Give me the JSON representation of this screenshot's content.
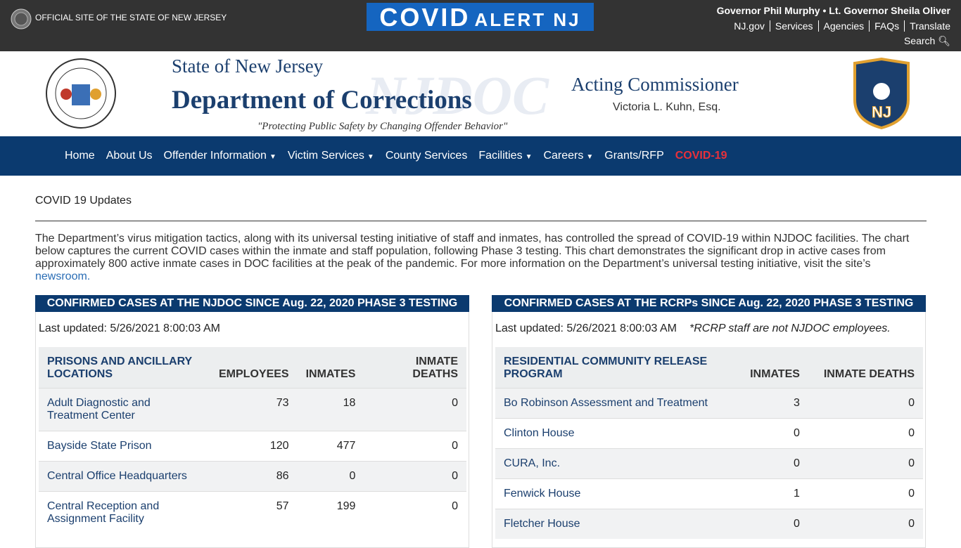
{
  "top_bar": {
    "official_site": "OFFICIAL SITE OF THE STATE OF NEW JERSEY",
    "covid_banner": {
      "covid": "COVID",
      "alert": "ALERT NJ"
    },
    "governor": "Governor Phil Murphy • Lt. Governor Sheila Oliver",
    "links": [
      "NJ.gov",
      "Services",
      "Agencies",
      "FAQs",
      "Translate"
    ],
    "search": "Search"
  },
  "header": {
    "state": "State of New Jersey",
    "department": "Department of Corrections",
    "watermark": "NJDOC",
    "tagline": "\"Protecting Public Safety by Changing Offender Behavior\"",
    "commissioner_title": "Acting Commissioner",
    "commissioner_name": "Victoria L. Kuhn, Esq."
  },
  "nav": [
    {
      "label": "Home",
      "dropdown": false
    },
    {
      "label": "About Us",
      "dropdown": false
    },
    {
      "label": "Offender Information",
      "dropdown": true
    },
    {
      "label": "Victim Services",
      "dropdown": true
    },
    {
      "label": "County Services",
      "dropdown": false
    },
    {
      "label": "Facilities",
      "dropdown": true
    },
    {
      "label": "Careers",
      "dropdown": true
    },
    {
      "label": "Grants/RFP",
      "dropdown": false
    },
    {
      "label": "COVID-19",
      "dropdown": false,
      "highlight": true
    }
  ],
  "content": {
    "page_title": "COVID 19 Updates",
    "intro": "The Department’s virus mitigation tactics, along with its universal testing initiative of staff and inmates, has controlled the spread of COVID-19 within NJDOC facilities. The chart below captures the current COVID cases within the inmate and staff population, following Phase 3 testing. This chart demonstrates the significant drop in active cases from approximately 800 active inmate cases in DOC facilities at the peak of the pandemic. For more information on the Department’s universal testing initiative, visit the site’s",
    "intro_link": "newsroom.",
    "panels": [
      {
        "heading": "CONFIRMED CASES AT THE NJDOC SINCE Aug. 22, 2020 PHASE 3 TESTING",
        "last_updated": "Last updated: 5/26/2021 8:00:03 AM",
        "columns": [
          "PRISONS AND ANCILLARY LOCATIONS",
          "EMPLOYEES",
          "INMATES",
          "INMATE DEATHS"
        ],
        "rows": [
          [
            "Adult Diagnostic and Treatment Center",
            73,
            18,
            0
          ],
          [
            "Bayside State Prison",
            120,
            477,
            0
          ],
          [
            "Central Office Headquarters",
            86,
            0,
            0
          ],
          [
            "Central Reception and Assignment Facility",
            57,
            199,
            0
          ]
        ]
      },
      {
        "heading": "CONFIRMED CASES AT THE RCRPs SINCE Aug. 22, 2020 PHASE 3 TESTING",
        "last_updated": "Last updated: 5/26/2021 8:00:03 AM",
        "note": "*RCRP staff are not NJDOC employees.",
        "columns": [
          "RESIDENTIAL COMMUNITY RELEASE PROGRAM",
          "INMATES",
          "INMATE DEATHS"
        ],
        "rows": [
          [
            "Bo Robinson Assessment and Treatment",
            3,
            0
          ],
          [
            "Clinton House",
            0,
            0
          ],
          [
            "CURA, Inc.",
            0,
            0
          ],
          [
            "Fenwick House",
            1,
            0
          ],
          [
            "Fletcher House",
            0,
            0
          ]
        ]
      }
    ]
  }
}
